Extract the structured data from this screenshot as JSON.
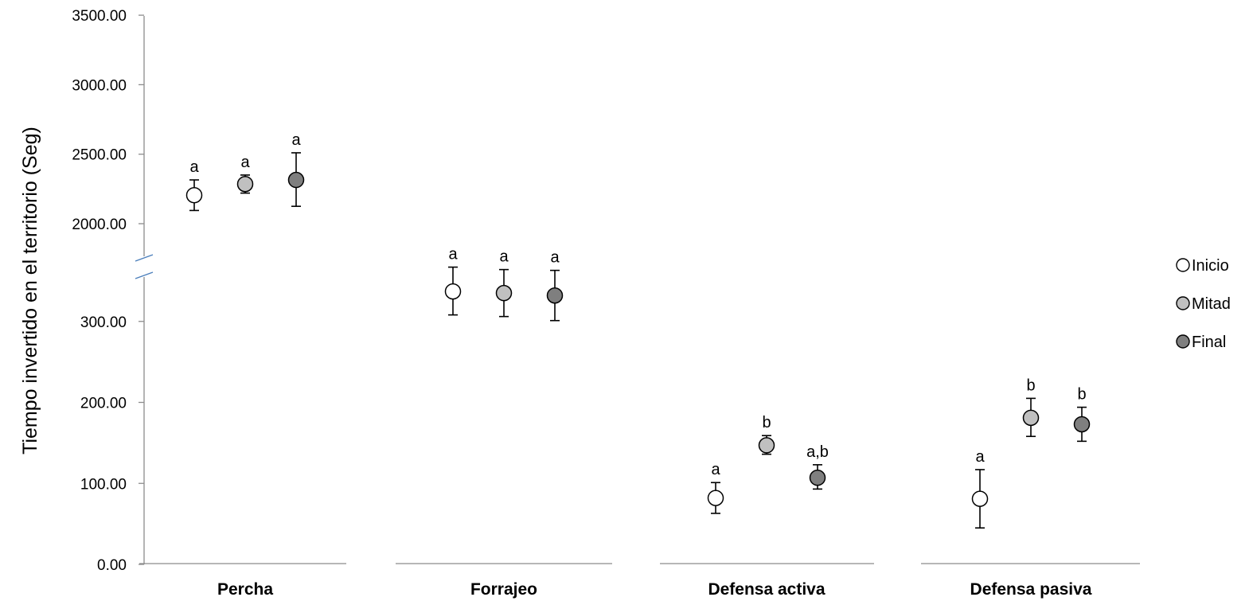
{
  "chart_data": {
    "type": "scatter",
    "ylabel": "Tiempo invertido en el territorio (Seg)",
    "xlabel": "",
    "ylim": [
      0,
      3500
    ],
    "axis_break": {
      "lower_max": 350,
      "upper_min": 1800
    },
    "y_ticks_lower": [
      "0.00",
      "100.00",
      "200.00",
      "300.00"
    ],
    "y_ticks_upper": [
      "2000.00",
      "2500.00",
      "3000.00",
      "3500.00"
    ],
    "y_tick_values_lower": [
      0,
      100,
      200,
      300
    ],
    "y_tick_values_upper": [
      2000,
      2500,
      3000,
      3500
    ],
    "categories": [
      "Percha",
      "Forrajeo",
      "Defensa activa",
      "Defensa pasiva"
    ],
    "legend": {
      "position": "right"
    },
    "series": [
      {
        "name": "Inicio",
        "color": "#ffffff",
        "values": [
          2205,
          337,
          82,
          81
        ],
        "error": [
          [
            2095,
            2315
          ],
          [
            308,
            367
          ],
          [
            63,
            101
          ],
          [
            45,
            117
          ]
        ],
        "labels": [
          "a",
          "a",
          "a",
          "a"
        ]
      },
      {
        "name": "Mitad",
        "color": "#c0c0c0",
        "values": [
          2285,
          335,
          147,
          181
        ],
        "error": [
          [
            2220,
            2350
          ],
          [
            306,
            364
          ],
          [
            136,
            159
          ],
          [
            158,
            205
          ]
        ],
        "labels": [
          "a",
          "a",
          "b",
          "b"
        ]
      },
      {
        "name": "Final",
        "color": "#7f7f7f",
        "values": [
          2315,
          332,
          107,
          173
        ],
        "error": [
          [
            2125,
            2510
          ],
          [
            301,
            363
          ],
          [
            93,
            123
          ],
          [
            152,
            194
          ]
        ],
        "labels": [
          "a",
          "a",
          "a,b",
          "b"
        ]
      }
    ]
  }
}
